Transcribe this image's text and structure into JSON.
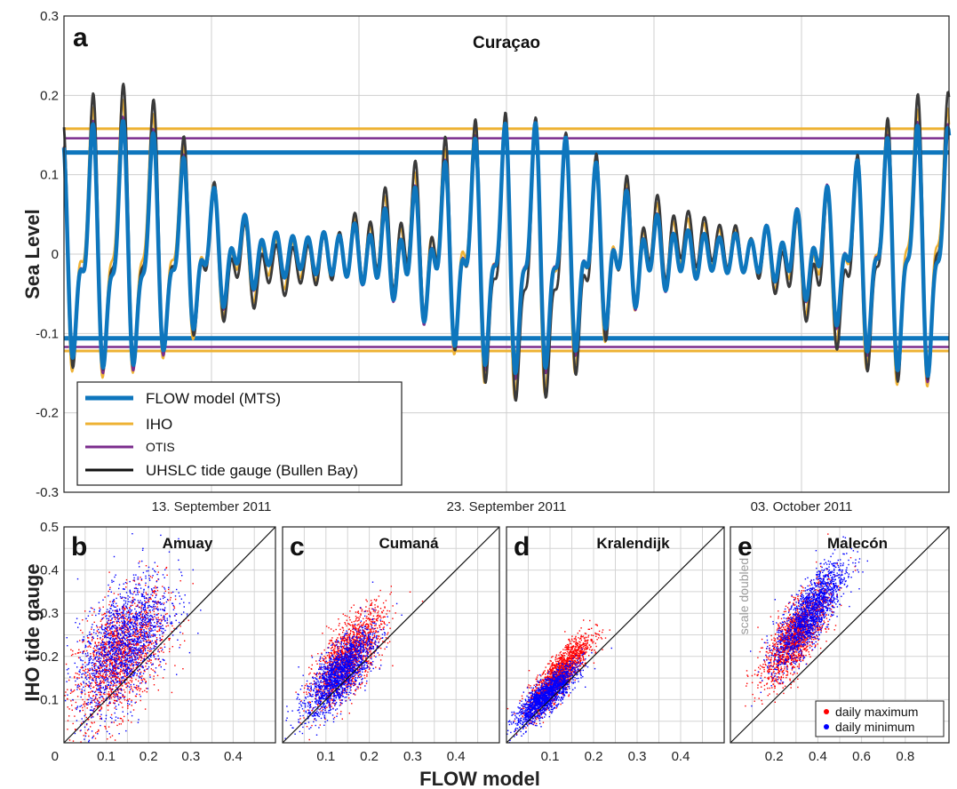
{
  "chart_data": [
    {
      "panel": "a",
      "type": "line",
      "title": "Curaçao",
      "ylabel": "Sea Level",
      "ylim": [
        -0.3,
        0.3
      ],
      "yticks": [
        "0.3",
        "0.2",
        "0.1",
        "0",
        "-0.1",
        "-0.2",
        "-0.3"
      ],
      "xticks": [
        "13. September 2011",
        "23. September 2011",
        "03. October 2011"
      ],
      "xlim_days": [
        0,
        30
      ],
      "grid": true,
      "legend_position": "bottom-left",
      "series": [
        {
          "name": "FLOW model (MTS)",
          "color": "#0e76bd",
          "amplitude": 0.135,
          "threshold_high": 0.128,
          "threshold_low": -0.106
        },
        {
          "name": "IHO",
          "color": "#eeb233",
          "amplitude": 0.15,
          "threshold_high": 0.158,
          "threshold_low": -0.122
        },
        {
          "name": "OTIS",
          "color": "#7b2d8d",
          "amplitude": 0.14,
          "threshold_high": 0.146,
          "threshold_low": -0.117
        },
        {
          "name": "UHSLC tide gauge (Bullen Bay)",
          "color": "#3a3a3a",
          "amplitude": 0.155
        }
      ]
    },
    {
      "panel": "b",
      "type": "scatter",
      "title": "Amuay",
      "xlim": [
        0,
        0.5
      ],
      "ylim": [
        0,
        0.5
      ],
      "xticks": [
        "0.1",
        "0.2",
        "0.3",
        "0.4"
      ],
      "max_cloud": {
        "cx": 0.13,
        "cy": 0.2,
        "sx": 0.055,
        "sy": 0.075,
        "rho": 0.5
      },
      "min_cloud": {
        "cx": 0.14,
        "cy": 0.23,
        "sx": 0.055,
        "sy": 0.08,
        "rho": 0.55
      }
    },
    {
      "panel": "c",
      "type": "scatter",
      "title": "Cumaná",
      "xlim": [
        0,
        0.5
      ],
      "ylim": [
        0,
        0.5
      ],
      "xticks": [
        "0.1",
        "0.2",
        "0.3",
        "0.4"
      ],
      "max_cloud": {
        "cx": 0.15,
        "cy": 0.2,
        "sx": 0.04,
        "sy": 0.055,
        "rho": 0.7
      },
      "min_cloud": {
        "cx": 0.13,
        "cy": 0.16,
        "sx": 0.04,
        "sy": 0.05,
        "rho": 0.75
      }
    },
    {
      "panel": "d",
      "type": "scatter",
      "title": "Kralendijk",
      "xlim": [
        0,
        0.5
      ],
      "ylim": [
        0,
        0.5
      ],
      "xticks": [
        "0.1",
        "0.2",
        "0.3",
        "0.4"
      ],
      "max_cloud": {
        "cx": 0.12,
        "cy": 0.16,
        "sx": 0.035,
        "sy": 0.045,
        "rho": 0.85
      },
      "min_cloud": {
        "cx": 0.09,
        "cy": 0.11,
        "sx": 0.035,
        "sy": 0.035,
        "rho": 0.85
      }
    },
    {
      "panel": "e",
      "type": "scatter",
      "title": "Malecón",
      "xlim": [
        0,
        1.0
      ],
      "ylim": [
        0,
        1.0
      ],
      "xticks": [
        "0.2",
        "0.4",
        "0.6",
        "0.8"
      ],
      "note": "scale doubled",
      "legend": [
        "daily maximum",
        "daily minimum"
      ],
      "max_cloud": {
        "cx": 0.3,
        "cy": 0.5,
        "sx": 0.075,
        "sy": 0.11,
        "rho": 0.75
      },
      "min_cloud": {
        "cx": 0.36,
        "cy": 0.6,
        "sx": 0.08,
        "sy": 0.12,
        "rho": 0.8
      }
    }
  ],
  "shared": {
    "scatter_yticks": [
      "0.5",
      "0.4",
      "0.3",
      "0.2",
      "0.1"
    ],
    "scatter_x_origin": "0",
    "scatter_ylabel": "IHO tide gauge",
    "scatter_xlabel": "FLOW model",
    "max_color": "#ff0000",
    "min_color": "#0000ff"
  }
}
